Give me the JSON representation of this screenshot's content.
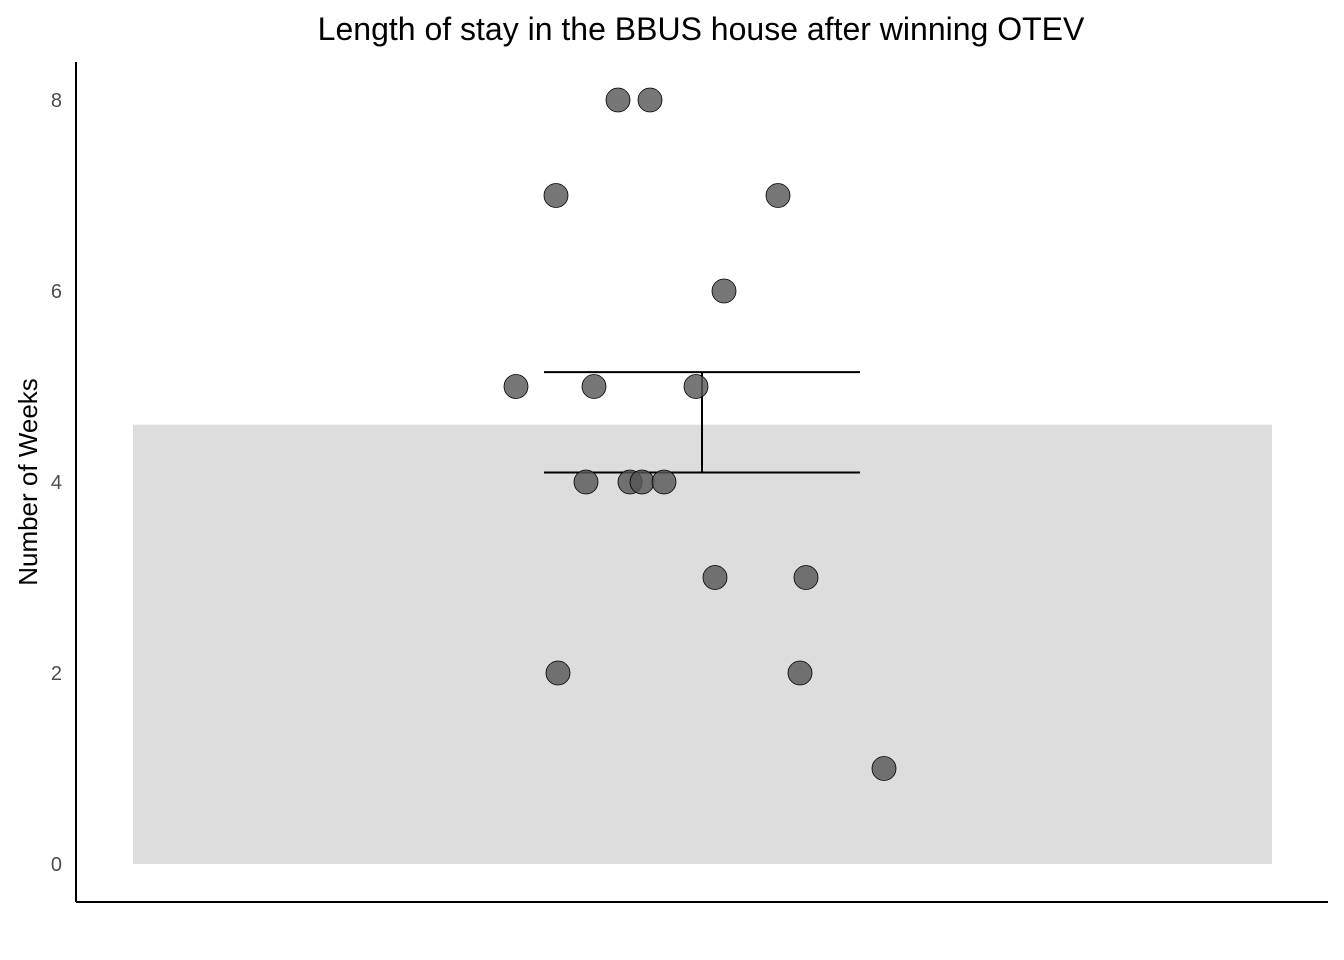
{
  "chart_data": {
    "type": "bar",
    "title": "Length of stay in the BBUS house after winning OTEV",
    "xlabel": "",
    "ylabel": "Number of Weeks",
    "ylim": [
      0,
      8.4
    ],
    "yticks": [
      0,
      2,
      4,
      6,
      8
    ],
    "grid": false,
    "legend": "none",
    "bar": {
      "value": 4.6,
      "color": "#dddddd"
    },
    "error_bar": {
      "lower": 4.1,
      "upper": 5.15,
      "color": "#000000"
    },
    "points": {
      "color": "#555555",
      "values": [
        8,
        8,
        7,
        7,
        6,
        5,
        5,
        5,
        4,
        4,
        4,
        4,
        3,
        3,
        2,
        2,
        1
      ]
    }
  }
}
